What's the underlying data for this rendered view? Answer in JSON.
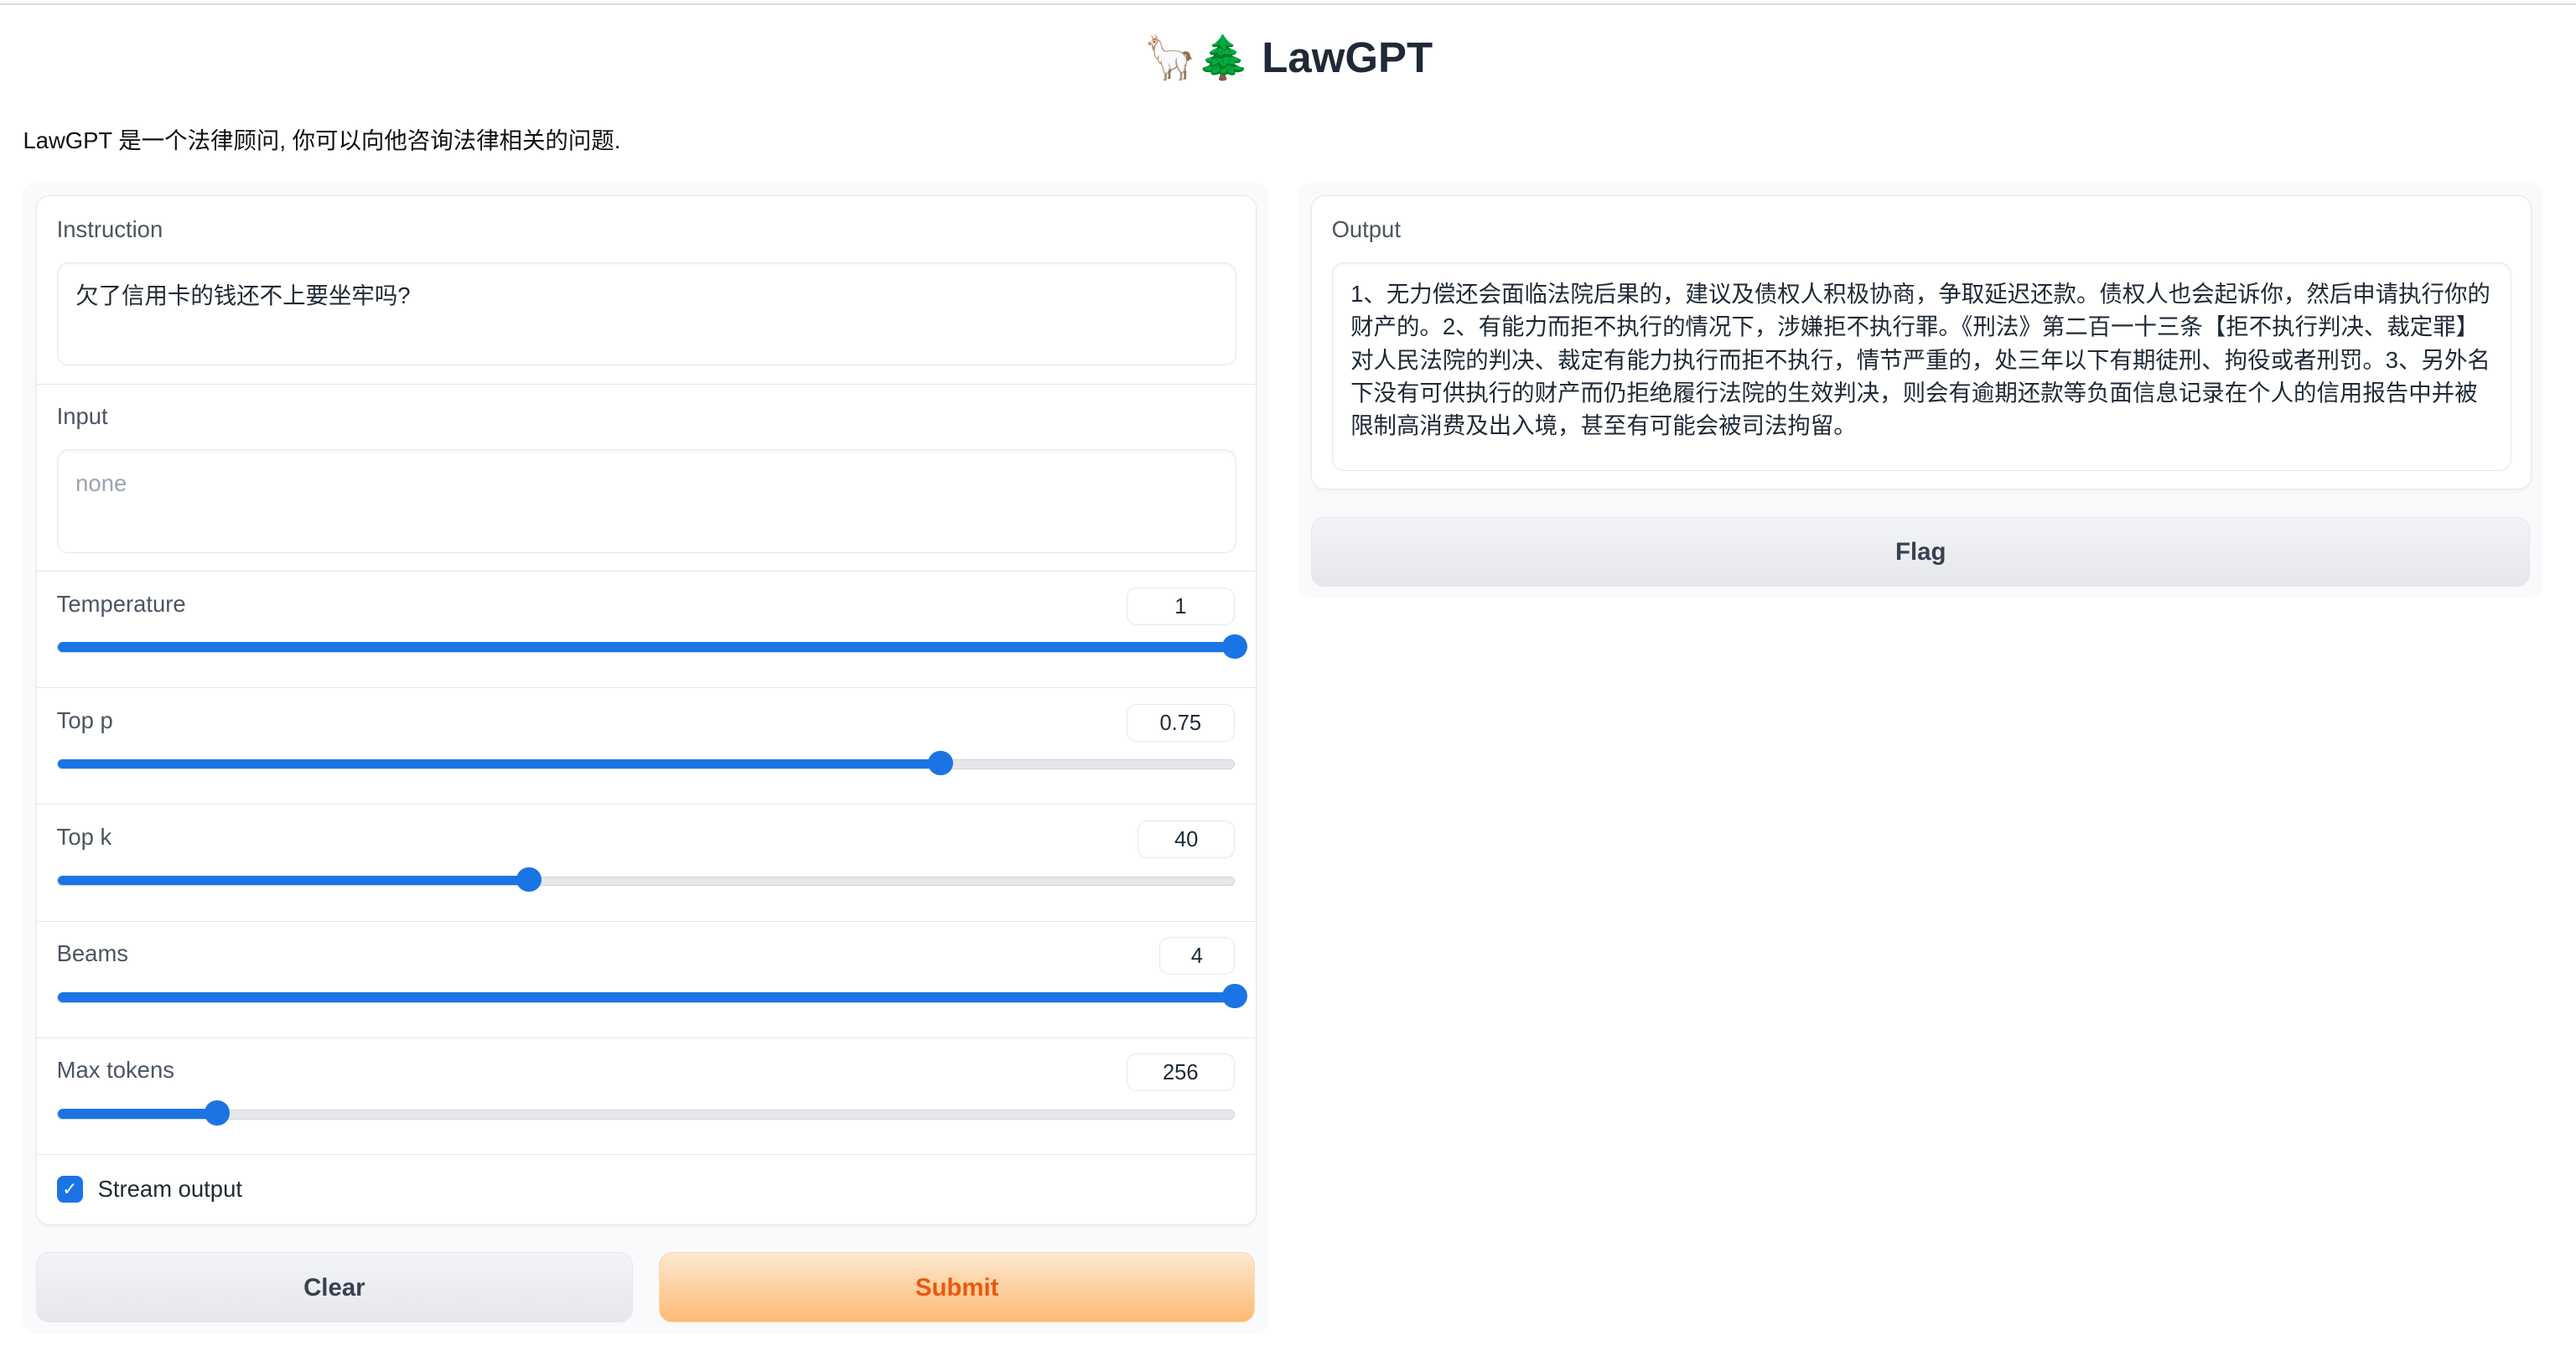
{
  "header": {
    "title_emoji": "🦙🌲",
    "title": "LawGPT",
    "description": "LawGPT 是一个法律顾问, 你可以向他咨询法律相关的问题."
  },
  "instruction": {
    "label": "Instruction",
    "value": "欠了信用卡的钱还不上要坐牢吗?"
  },
  "input": {
    "label": "Input",
    "placeholder": "none",
    "value": ""
  },
  "sliders": [
    {
      "label": "Temperature",
      "value": "1",
      "fill": 1.0
    },
    {
      "label": "Top p",
      "value": "0.75",
      "fill": 0.75
    },
    {
      "label": "Top k",
      "value": "40",
      "fill": 0.4
    },
    {
      "label": "Beams",
      "value": "4",
      "fill": 1.0
    },
    {
      "label": "Max tokens",
      "value": "256",
      "fill": 0.135
    }
  ],
  "stream": {
    "label": "Stream output",
    "checked": true
  },
  "buttons": {
    "clear": "Clear",
    "submit": "Submit",
    "flag": "Flag"
  },
  "output": {
    "label": "Output",
    "value": "1、无力偿还会面临法院后果的，建议及债权人积极协商，争取延迟还款。债权人也会起诉你，然后申请执行你的财产的。2、有能力而拒不执行的情况下，涉嫌拒不执行罪。《刑法》第二百一十三条【拒不执行判决、裁定罪】对人民法院的判决、裁定有能力执行而拒不执行，情节严重的，处三年以下有期徒刑、拘役或者刑罚。3、另外名下没有可供执行的财产而仍拒绝履行法院的生效判决，则会有逾期还款等负面信息记录在个人的信用报告中并被限制高消费及出入境，甚至有可能会被司法拘留。"
  },
  "colors": {
    "accent": "#1b74e4",
    "submit_text": "#ea580c"
  }
}
